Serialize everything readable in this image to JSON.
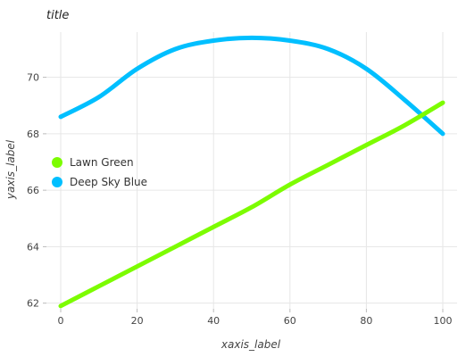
{
  "chart_data": {
    "type": "line",
    "title": "title",
    "xlabel": "xaxis_label",
    "ylabel": "yaxis_label",
    "xlim": [
      0,
      100
    ],
    "ylim": [
      61.8,
      71.6
    ],
    "xticks": [
      0,
      20,
      40,
      60,
      80,
      100
    ],
    "yticks": [
      62,
      64,
      66,
      68,
      70
    ],
    "grid": true,
    "legend_position": "center-left",
    "series": [
      {
        "name": "Deep Sky Blue",
        "color": "#00BFFF",
        "x": [
          0,
          10,
          20,
          30,
          40,
          50,
          60,
          70,
          80,
          90,
          100
        ],
        "y": [
          68.6,
          69.3,
          70.3,
          71.0,
          71.3,
          71.4,
          71.3,
          71.0,
          70.3,
          69.2,
          68.0
        ]
      },
      {
        "name": "Lawn Green",
        "color": "#7CFC00",
        "x": [
          0,
          10,
          20,
          30,
          40,
          50,
          60,
          70,
          80,
          90,
          100
        ],
        "y": [
          61.9,
          62.6,
          63.3,
          64.0,
          64.7,
          65.4,
          66.2,
          66.9,
          67.6,
          68.3,
          69.1
        ]
      }
    ]
  }
}
